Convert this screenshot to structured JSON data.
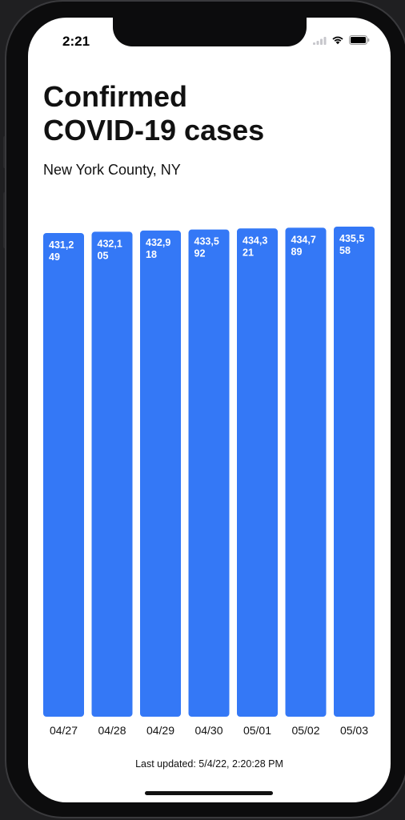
{
  "status_bar": {
    "time": "2:21"
  },
  "header": {
    "title_line1": "Confirmed",
    "title_line2": "COVID-19 cases",
    "subtitle": "New York County, NY"
  },
  "chart_data": {
    "type": "bar",
    "categories": [
      "04/27",
      "04/28",
      "04/29",
      "04/30",
      "05/01",
      "05/02",
      "05/03"
    ],
    "values": [
      431249,
      432105,
      432918,
      433592,
      434321,
      434789,
      435558
    ],
    "value_labels": [
      [
        "431,2",
        "49"
      ],
      [
        "432,1",
        "05"
      ],
      [
        "432,9",
        "18"
      ],
      [
        "433,5",
        "92"
      ],
      [
        "434,3",
        "21"
      ],
      [
        "434,7",
        "89"
      ],
      [
        "435,5",
        "58"
      ]
    ],
    "bar_color": "#3478f6",
    "title": "",
    "xlabel": "",
    "ylabel": "",
    "ylim": [
      0,
      435558
    ]
  },
  "footer": {
    "last_updated": "Last updated: 5/4/22, 2:20:28 PM"
  }
}
